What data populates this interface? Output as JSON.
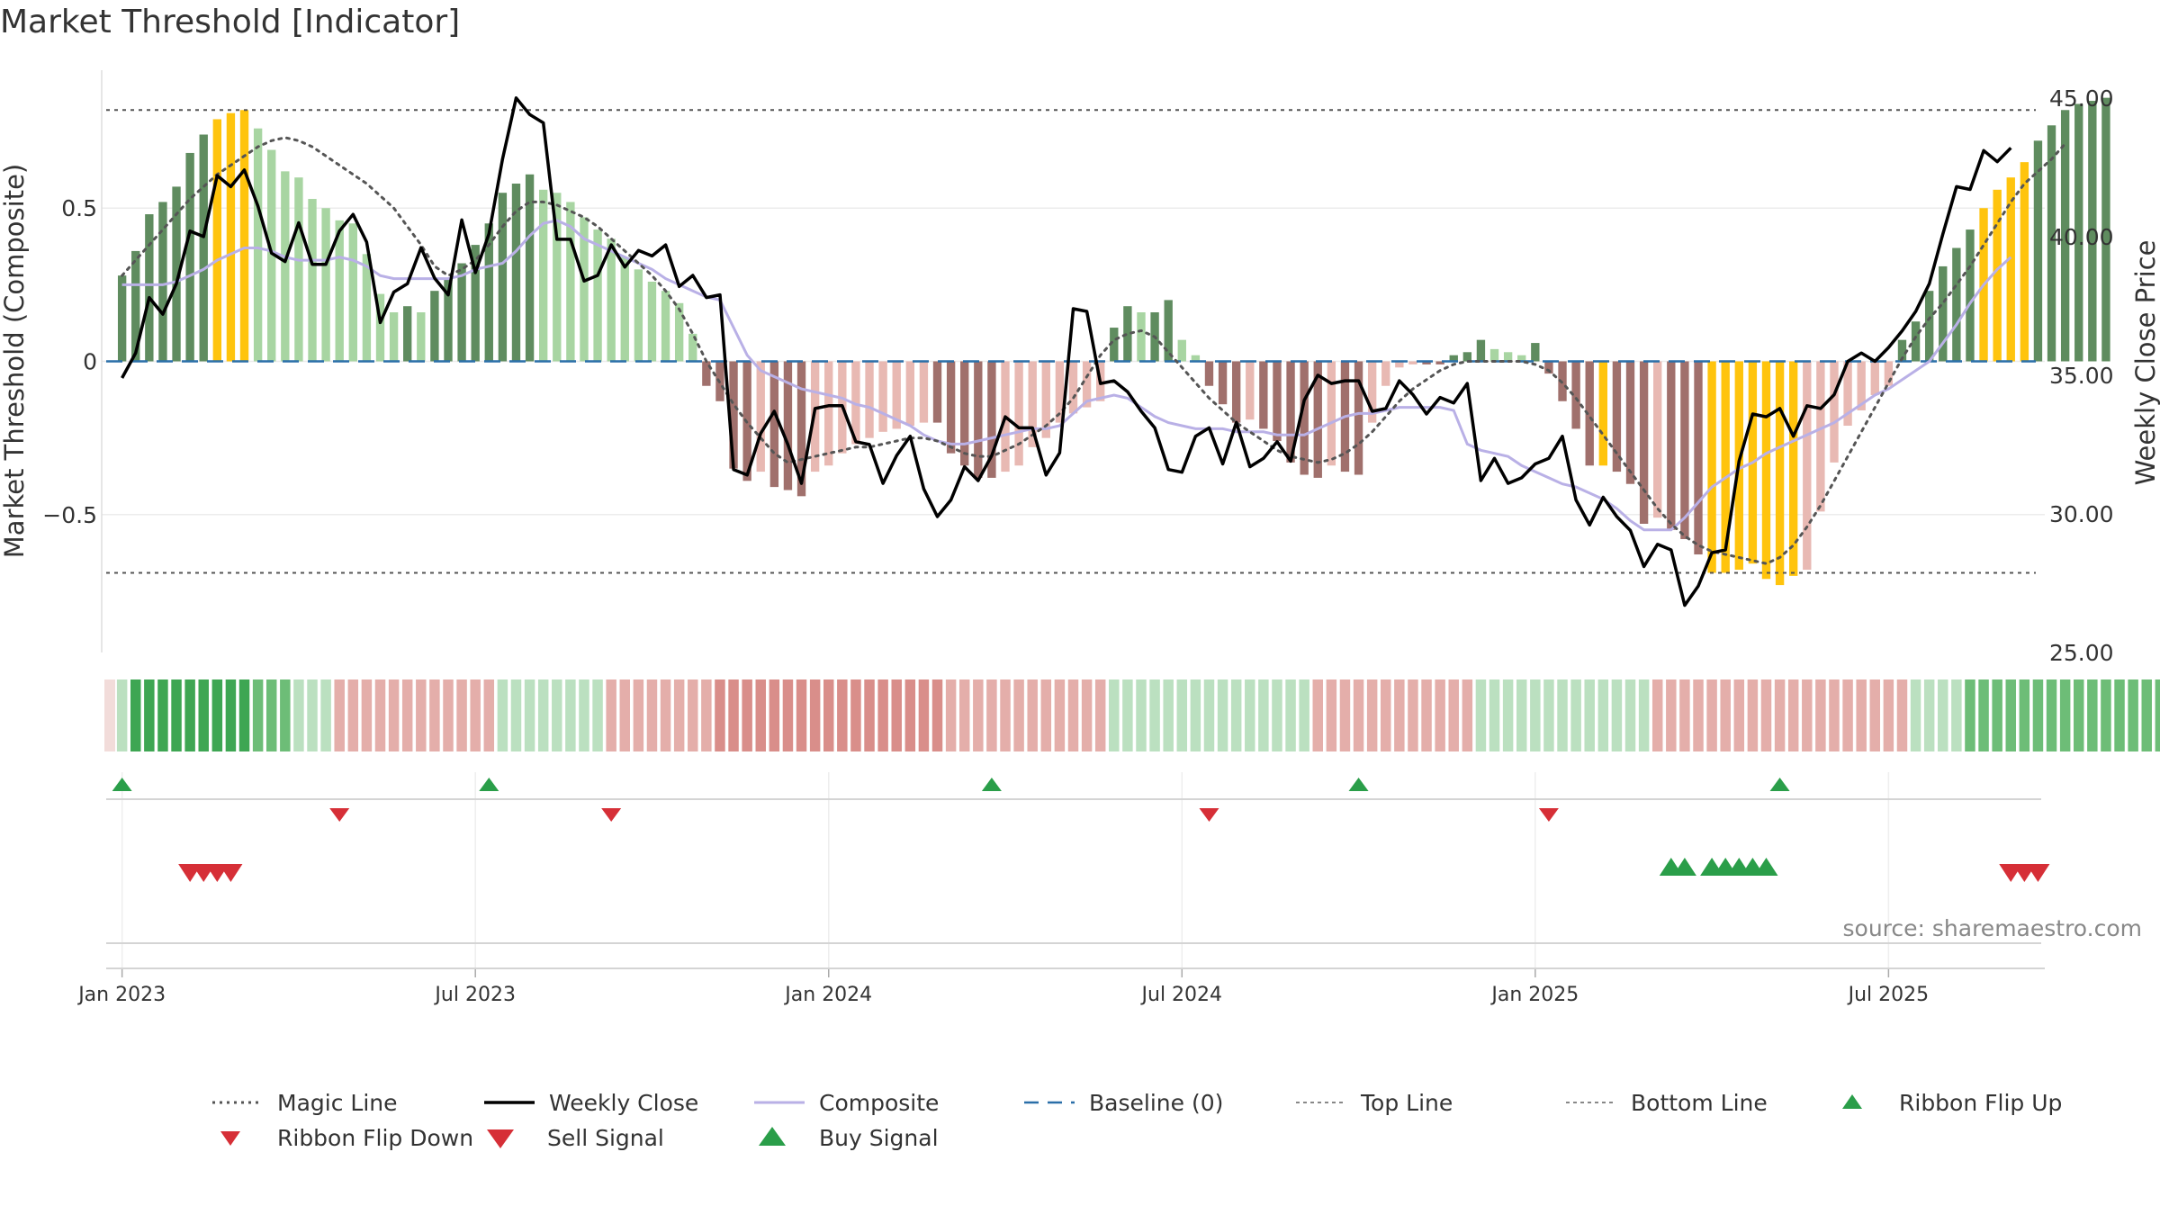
{
  "title": "Market Threshold [Indicator]",
  "source": "source: sharemaestro.com",
  "colors": {
    "dark_green": "#5f8c5f",
    "light_green": "#a8d5a2",
    "dark_red": "#a0706c",
    "light_red": "#e8b9b3",
    "gold": "#ffc40d",
    "composite": "#b9b0e6",
    "close": "#000000",
    "magic": "#555555",
    "baseline": "#2a6fa8",
    "guide": "#555555",
    "buy": "#2a9e49",
    "sell": "#d62f37"
  },
  "chart_data": {
    "type": "bar",
    "title": "Market Threshold [Indicator]",
    "ylabel": "Market Threshold (Composite)",
    "ylabel_right": "Weekly Close Price",
    "ylim": [
      -0.95,
      0.95
    ],
    "ylim_right": [
      25.0,
      46.0
    ],
    "y_ticks": [
      0.5,
      0,
      -0.5
    ],
    "y_tick_labels": [
      "0.5",
      "0",
      "−0.5"
    ],
    "y_right_ticks": [
      45.0,
      40.0,
      35.0,
      30.0,
      25.0
    ],
    "y_right_tick_labels": [
      "45.00",
      "40.00",
      "35.00",
      "30.00",
      "25.00"
    ],
    "x_ticks": [
      "Jan 2023",
      "Jul 2023",
      "Jan 2024",
      "Jul 2024",
      "Jan 2025",
      "Jul 2025"
    ],
    "x_tick_weeks": [
      0,
      26,
      52,
      78,
      104,
      130
    ],
    "x_week_range": [
      -1.5,
      141.5
    ],
    "top_line": 0.82,
    "bottom_line": -0.69,
    "grid": true,
    "legend_position": "bottom",
    "series": [
      {
        "name": "Market Threshold (Composite)",
        "kind": "bar",
        "values": [
          0.28,
          0.36,
          0.48,
          0.52,
          0.57,
          0.68,
          0.74,
          0.79,
          0.81,
          0.82,
          0.76,
          0.69,
          0.62,
          0.6,
          0.53,
          0.5,
          0.46,
          0.45,
          0.35,
          0.22,
          0.16,
          0.18,
          0.16,
          0.23,
          0.27,
          0.32,
          0.38,
          0.45,
          0.55,
          0.58,
          0.61,
          0.56,
          0.55,
          0.52,
          0.47,
          0.43,
          0.4,
          0.34,
          0.3,
          0.26,
          0.23,
          0.19,
          0.09,
          -0.08,
          -0.13,
          -0.35,
          -0.39,
          -0.36,
          -0.41,
          -0.42,
          -0.44,
          -0.36,
          -0.34,
          -0.3,
          -0.27,
          -0.25,
          -0.23,
          -0.22,
          -0.21,
          -0.2,
          -0.2,
          -0.3,
          -0.34,
          -0.38,
          -0.38,
          -0.36,
          -0.34,
          -0.28,
          -0.25,
          -0.2,
          -0.17,
          -0.15,
          -0.13,
          0.11,
          0.18,
          0.16,
          0.16,
          0.2,
          0.07,
          0.02,
          -0.08,
          -0.14,
          -0.2,
          -0.19,
          -0.22,
          -0.26,
          -0.33,
          -0.37,
          -0.38,
          -0.34,
          -0.36,
          -0.37,
          -0.2,
          -0.08,
          -0.02,
          -0.01,
          -0.01,
          -0.01,
          0.02,
          0.03,
          0.07,
          0.04,
          0.03,
          0.02,
          0.06,
          -0.04,
          -0.13,
          -0.22,
          -0.34,
          -0.34,
          -0.36,
          -0.4,
          -0.53,
          -0.51,
          -0.55,
          -0.58,
          -0.63,
          -0.69,
          -0.69,
          -0.68,
          -0.66,
          -0.71,
          -0.73,
          -0.7,
          -0.68,
          -0.49,
          -0.33,
          -0.21,
          -0.16,
          -0.11,
          -0.08,
          0.07,
          0.13,
          0.23,
          0.31,
          0.37,
          0.43,
          0.5,
          0.56,
          0.6,
          0.65,
          0.72,
          0.77,
          0.82,
          0.84,
          0.85,
          0.86
        ]
      },
      {
        "name": "Weekly Close",
        "kind": "line",
        "axis": "right",
        "values": [
          34.9,
          35.8,
          37.8,
          37.2,
          38.3,
          40.2,
          40.0,
          42.2,
          41.8,
          42.4,
          41.1,
          39.4,
          39.1,
          40.5,
          39.0,
          39.0,
          40.2,
          40.8,
          39.8,
          36.9,
          38.0,
          38.3,
          39.6,
          38.5,
          37.9,
          40.6,
          38.7,
          40.1,
          42.8,
          45.0,
          44.4,
          44.1,
          39.9,
          39.9,
          38.4,
          38.6,
          39.7,
          38.9,
          39.5,
          39.3,
          39.7,
          38.2,
          38.6,
          37.8,
          37.9,
          31.6,
          31.4,
          32.9,
          33.7,
          32.5,
          31.1,
          33.8,
          33.9,
          33.9,
          32.6,
          32.5,
          31.1,
          32.1,
          32.8,
          30.9,
          29.9,
          30.5,
          31.7,
          31.2,
          32.1,
          33.5,
          33.1,
          33.1,
          31.4,
          32.2,
          37.4,
          37.3,
          34.7,
          34.8,
          34.4,
          33.7,
          33.1,
          31.6,
          31.5,
          32.8,
          33.1,
          31.8,
          33.3,
          31.7,
          32.0,
          32.6,
          31.9,
          34.1,
          35.0,
          34.7,
          34.8,
          34.8,
          33.7,
          33.8,
          34.8,
          34.3,
          33.6,
          34.2,
          34.0,
          34.7,
          31.2,
          32.0,
          31.1,
          31.3,
          31.8,
          32.0,
          32.8,
          30.5,
          29.6,
          30.6,
          29.9,
          29.4,
          28.1,
          28.9,
          28.7,
          26.7,
          27.4,
          28.6,
          28.7,
          31.9,
          33.6,
          33.5,
          33.8,
          32.8,
          33.9,
          33.8,
          34.3,
          35.5,
          35.8,
          35.5,
          36.0,
          36.6,
          37.3,
          38.3,
          40.1,
          41.8,
          41.7,
          43.1,
          42.7,
          43.2
        ]
      },
      {
        "name": "Magic Line",
        "kind": "line",
        "style": "dotted",
        "values": [
          0.28,
          0.33,
          0.38,
          0.43,
          0.48,
          0.53,
          0.57,
          0.61,
          0.64,
          0.67,
          0.7,
          0.72,
          0.73,
          0.72,
          0.7,
          0.67,
          0.64,
          0.61,
          0.58,
          0.54,
          0.5,
          0.44,
          0.38,
          0.31,
          0.28,
          0.3,
          0.33,
          0.38,
          0.44,
          0.49,
          0.52,
          0.52,
          0.51,
          0.49,
          0.47,
          0.44,
          0.4,
          0.36,
          0.32,
          0.28,
          0.23,
          0.17,
          0.09,
          0.0,
          -0.07,
          -0.14,
          -0.2,
          -0.25,
          -0.3,
          -0.33,
          -0.32,
          -0.31,
          -0.3,
          -0.29,
          -0.28,
          -0.28,
          -0.27,
          -0.26,
          -0.25,
          -0.25,
          -0.26,
          -0.28,
          -0.3,
          -0.31,
          -0.31,
          -0.29,
          -0.27,
          -0.24,
          -0.21,
          -0.17,
          -0.12,
          -0.05,
          0.02,
          0.07,
          0.09,
          0.1,
          0.08,
          0.03,
          -0.02,
          -0.07,
          -0.12,
          -0.16,
          -0.2,
          -0.23,
          -0.26,
          -0.29,
          -0.31,
          -0.32,
          -0.33,
          -0.32,
          -0.3,
          -0.27,
          -0.23,
          -0.18,
          -0.13,
          -0.09,
          -0.06,
          -0.03,
          -0.01,
          0.0,
          0.0,
          0.0,
          0.0,
          0.0,
          -0.01,
          -0.03,
          -0.07,
          -0.12,
          -0.18,
          -0.24,
          -0.3,
          -0.36,
          -0.42,
          -0.48,
          -0.53,
          -0.57,
          -0.6,
          -0.62,
          -0.63,
          -0.64,
          -0.65,
          -0.66,
          -0.64,
          -0.6,
          -0.54,
          -0.47,
          -0.39,
          -0.31,
          -0.23,
          -0.15,
          -0.07,
          0.01,
          0.08,
          0.14,
          0.19,
          0.25,
          0.31,
          0.38,
          0.45,
          0.52,
          0.58,
          0.62,
          0.66,
          0.71
        ]
      },
      {
        "name": "Composite",
        "kind": "line",
        "values": [
          0.25,
          0.25,
          0.25,
          0.25,
          0.26,
          0.28,
          0.3,
          0.33,
          0.35,
          0.37,
          0.37,
          0.36,
          0.34,
          0.33,
          0.33,
          0.33,
          0.34,
          0.33,
          0.31,
          0.28,
          0.27,
          0.27,
          0.27,
          0.27,
          0.27,
          0.28,
          0.3,
          0.31,
          0.32,
          0.36,
          0.41,
          0.45,
          0.46,
          0.44,
          0.4,
          0.38,
          0.36,
          0.34,
          0.32,
          0.3,
          0.27,
          0.25,
          0.23,
          0.21,
          0.2,
          0.11,
          0.02,
          -0.03,
          -0.05,
          -0.07,
          -0.09,
          -0.1,
          -0.11,
          -0.12,
          -0.14,
          -0.15,
          -0.17,
          -0.19,
          -0.21,
          -0.24,
          -0.26,
          -0.27,
          -0.27,
          -0.26,
          -0.25,
          -0.24,
          -0.23,
          -0.22,
          -0.22,
          -0.21,
          -0.17,
          -0.13,
          -0.12,
          -0.11,
          -0.12,
          -0.15,
          -0.18,
          -0.2,
          -0.21,
          -0.22,
          -0.22,
          -0.22,
          -0.23,
          -0.23,
          -0.23,
          -0.24,
          -0.24,
          -0.24,
          -0.22,
          -0.2,
          -0.18,
          -0.17,
          -0.17,
          -0.16,
          -0.15,
          -0.15,
          -0.15,
          -0.15,
          -0.16,
          -0.27,
          -0.29,
          -0.3,
          -0.31,
          -0.34,
          -0.36,
          -0.38,
          -0.4,
          -0.41,
          -0.43,
          -0.45,
          -0.48,
          -0.52,
          -0.55,
          -0.55,
          -0.55,
          -0.51,
          -0.46,
          -0.41,
          -0.38,
          -0.35,
          -0.33,
          -0.3,
          -0.28,
          -0.26,
          -0.24,
          -0.22,
          -0.2,
          -0.17,
          -0.14,
          -0.11,
          -0.09,
          -0.06,
          -0.03,
          0.0,
          0.06,
          0.12,
          0.19,
          0.25,
          0.3,
          0.34
        ]
      },
      {
        "name": "Baseline (0)",
        "kind": "line",
        "style": "dashed",
        "value": 0
      },
      {
        "name": "Top Line",
        "kind": "line",
        "style": "dotted",
        "value": 0.82
      },
      {
        "name": "Bottom Line",
        "kind": "line",
        "style": "dotted",
        "value": -0.69
      }
    ],
    "gold_weeks": [
      7,
      8,
      9,
      109,
      117,
      118,
      119,
      120,
      121,
      122,
      123,
      137,
      138,
      139,
      140
    ],
    "ribbon_levels": [
      1,
      3,
      3,
      3,
      3,
      3,
      3,
      3,
      3,
      3,
      2,
      2,
      2,
      1,
      1,
      1,
      -1,
      -1,
      -1,
      -1,
      -1,
      -1,
      -1,
      -1,
      -1,
      -1,
      -1,
      -1,
      1,
      1,
      1,
      1,
      1,
      1,
      1,
      1,
      -1,
      -1,
      -1,
      -1,
      -1,
      -1,
      -1,
      -1,
      -2,
      -2,
      -2,
      -2,
      -2,
      -2,
      -2,
      -2,
      -2,
      -2,
      -2,
      -2,
      -2,
      -2,
      -2,
      -2,
      -2,
      -1,
      -1,
      -1,
      -1,
      -1,
      -1,
      -1,
      -1,
      -1,
      -1,
      -1,
      -1,
      1,
      1,
      1,
      1,
      1,
      1,
      1,
      1,
      1,
      1,
      1,
      1,
      1,
      1,
      1,
      -1,
      -1,
      -1,
      -1,
      -1,
      -1,
      -1,
      -1,
      -1,
      -1,
      -1,
      -1,
      1,
      1,
      1,
      1,
      1,
      1,
      1,
      1,
      1,
      1,
      1,
      1,
      1,
      -1,
      -1,
      -1,
      -1,
      -1,
      -1,
      -1,
      -1,
      -1,
      -1,
      -1,
      -1,
      -1,
      -1,
      -1,
      -1,
      -1,
      -1,
      -1,
      1,
      1,
      1,
      1,
      2,
      2,
      2,
      2,
      2,
      2,
      2,
      2,
      2,
      2,
      2,
      2,
      2,
      2,
      2,
      2,
      2,
      2,
      2,
      2
    ],
    "ribbon_flip_up_weeks": [
      0,
      27,
      64,
      91,
      122
    ],
    "ribbon_flip_down_weeks": [
      16,
      36,
      80,
      105
    ],
    "buy_signal_weeks": [
      114,
      115,
      117,
      118,
      119,
      120,
      121
    ],
    "sell_signal_weeks": [
      5,
      6,
      7,
      8,
      139,
      140,
      141
    ],
    "legend": [
      {
        "label": "Magic Line",
        "kind": "dotted"
      },
      {
        "label": "Weekly Close",
        "kind": "solid"
      },
      {
        "label": "Composite",
        "kind": "composite"
      },
      {
        "label": "Baseline (0)",
        "kind": "dashed"
      },
      {
        "label": "Top Line",
        "kind": "thin-dotted"
      },
      {
        "label": "Bottom Line",
        "kind": "thin-dotted"
      },
      {
        "label": "Ribbon Flip Up",
        "kind": "tri-up-small"
      },
      {
        "label": "Ribbon Flip Down",
        "kind": "tri-down-small"
      },
      {
        "label": "Sell Signal",
        "kind": "tri-down-large"
      },
      {
        "label": "Buy Signal",
        "kind": "tri-up-large"
      }
    ]
  }
}
